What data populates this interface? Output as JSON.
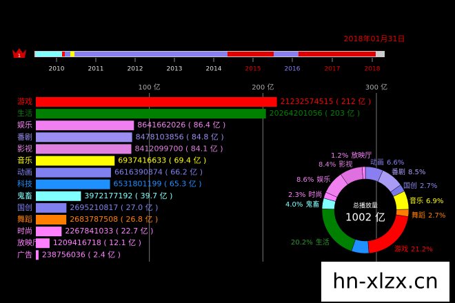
{
  "timeline": {
    "date": "2018年01月31日",
    "rank": "1",
    "years": [
      "2010",
      "2011",
      "2012",
      "2013",
      "2014",
      "2015",
      "2016",
      "2017",
      "2018"
    ]
  },
  "chart_data": [
    {
      "type": "bar",
      "orientation": "horizontal",
      "categories": [
        "游戏",
        "生活",
        "娱乐",
        "番剧",
        "影视",
        "音乐",
        "动画",
        "科技",
        "鬼畜",
        "国创",
        "舞蹈",
        "时尚",
        "放映厅",
        "广告"
      ],
      "values": [
        212.32574515,
        202.64201056,
        86.41662026,
        84.78103856,
        84.120997,
        69.37416633,
        66.16390874,
        65.31801199,
        39.72177192,
        26.95210817,
        26.83787508,
        22.67841033,
        12.09416718,
        2.38756036
      ],
      "value_labels": [
        "21232574515 ( 212 亿 )",
        "20264201056 ( 203 亿 )",
        "8641662026 ( 86.4 亿 )",
        "8478103856 ( 84.8 亿 )",
        "8412099700 ( 84.1 亿 )",
        "6937416633 ( 69.4 亿 )",
        "6616390874 ( 66.2 亿 )",
        "6531801199 ( 65.3 亿 )",
        "3972177192 ( 39.7 亿 )",
        "2695210817 ( 27.0 亿 )",
        "2683787508 ( 26.8 亿 )",
        "2267841033 ( 22.7 亿 )",
        "1209416718 ( 12.1 亿 )",
        "238756036 ( 2.4 亿 )"
      ],
      "colors": [
        "#ff0000",
        "#008000",
        "#f080f0",
        "#9a8ef0",
        "#e080e0",
        "#ffff00",
        "#8080f0",
        "#1e90ff",
        "#80ffff",
        "#8080f0",
        "#ff8000",
        "#ff80ff",
        "#ff80ff",
        "#ff80ff"
      ],
      "xlim": [
        0,
        300
      ],
      "xticks": [
        {
          "value": 100,
          "label": "100 亿"
        },
        {
          "value": 200,
          "label": "200 亿"
        },
        {
          "value": 300,
          "label": "300 亿"
        }
      ],
      "grid": true
    },
    {
      "type": "donut",
      "center_label": "总播放量",
      "center_value": "1002 亿",
      "categories": [
        "动画",
        "番剧",
        "国创",
        "音乐",
        "舞蹈",
        "游戏",
        null,
        "生活",
        "鬼畜",
        "时尚",
        "娱乐",
        "影视",
        "放映厅"
      ],
      "values": [
        6.6,
        8.5,
        2.7,
        6.9,
        2.7,
        21.2,
        6.5,
        20.2,
        4.0,
        2.3,
        8.6,
        8.4,
        1.2
      ],
      "value_labels": [
        "6.6%",
        "8.5%",
        "2.7%",
        "6.9%",
        "2.7%",
        "21.2%",
        null,
        "20.2%",
        "4.0%",
        "2.3%",
        "8.6%",
        "8.4%",
        "1.2%"
      ],
      "colors": [
        "#8a7ff0",
        "#a89cf5",
        "#7878e8",
        "#ffff00",
        "#ff8000",
        "#ff0000",
        "#1e90ff",
        "#008000",
        "#80ffff",
        "#ff80ff",
        "#f080f0",
        "#e070e0",
        "#ff80ff"
      ]
    }
  ],
  "watermark": "hn-xlzx.cn"
}
